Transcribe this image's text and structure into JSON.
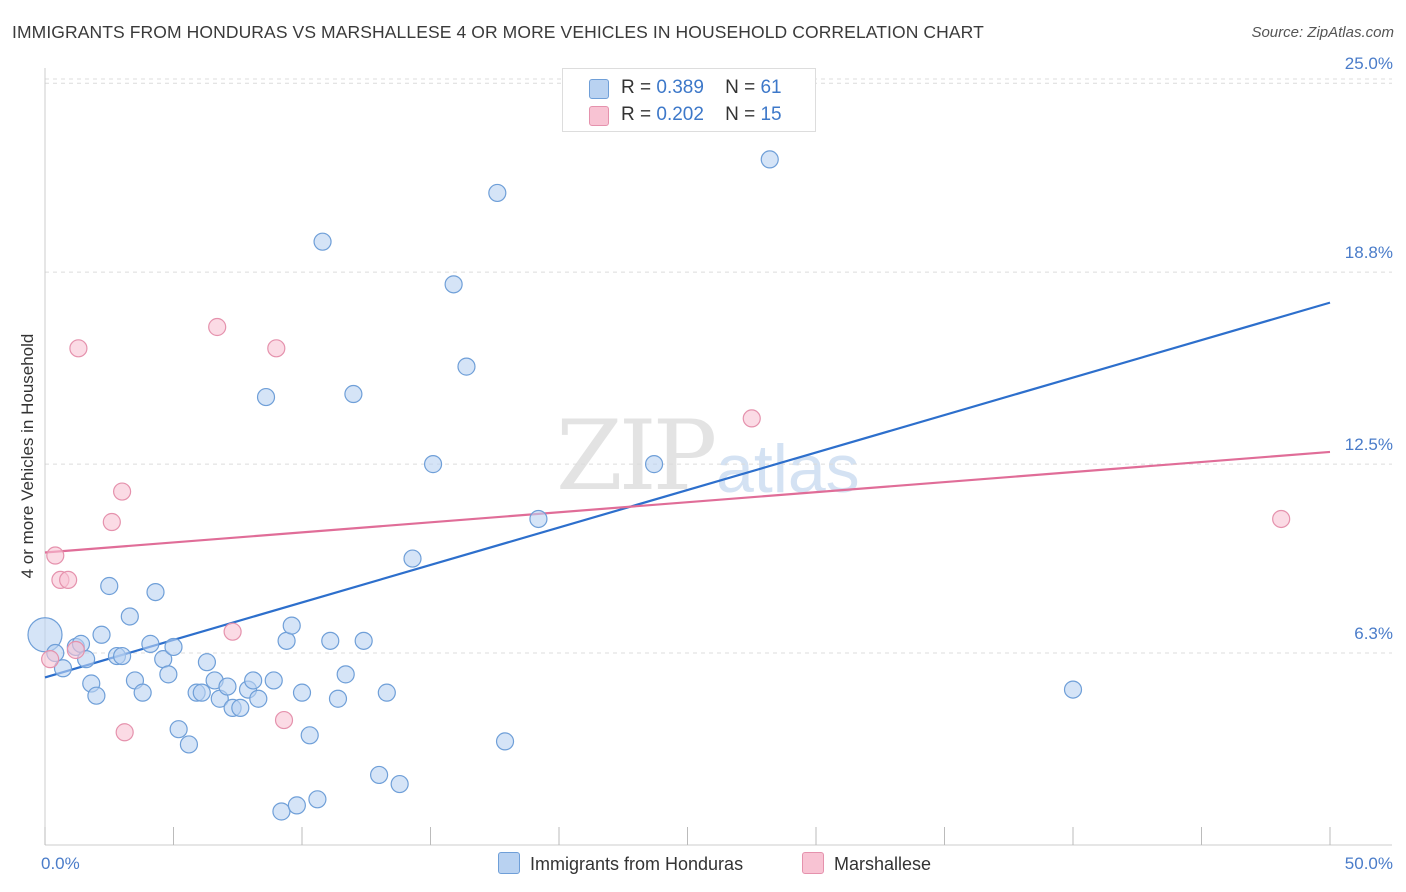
{
  "title": "IMMIGRANTS FROM HONDURAS VS MARSHALLESE 4 OR MORE VEHICLES IN HOUSEHOLD CORRELATION CHART",
  "source": "Source: ZipAtlas.com",
  "watermark": {
    "zip": "ZIP",
    "atlas": "atlas"
  },
  "colors": {
    "blue_fill": "#b9d2f1",
    "blue_stroke": "#6f9fd8",
    "blue_line": "#2d6fcc",
    "pink_fill": "#f8c3d3",
    "pink_stroke": "#e592ad",
    "pink_line": "#e06d98",
    "tick_text": "#4a7cc9",
    "grid": "#dcdcdc"
  },
  "legend": {
    "series1": {
      "r_label": "R =",
      "r_value": "0.389",
      "n_label": "N =",
      "n_value": "61"
    },
    "series2": {
      "r_label": "R =",
      "r_value": "0.202",
      "n_label": "N =",
      "n_value": "15"
    }
  },
  "chart_data": {
    "type": "scatter",
    "title": "IMMIGRANTS FROM HONDURAS VS MARSHALLESE 4 OR MORE VEHICLES IN HOUSEHOLD CORRELATION CHART",
    "xlabel": "",
    "ylabel": "4 or more Vehicles in Household",
    "xlim": [
      0,
      50
    ],
    "ylim": [
      0,
      25.5
    ],
    "x_tick_labels": [
      "0.0%",
      "50.0%"
    ],
    "y_ticks": [
      6.3,
      12.5,
      18.8,
      25.0
    ],
    "y_tick_labels": [
      "6.3%",
      "12.5%",
      "18.8%",
      "25.0%"
    ],
    "legend_position": "top-center",
    "series": [
      {
        "name": "Immigrants from Honduras",
        "r": 0.389,
        "n": 61,
        "trend": {
          "x0": 0,
          "y0": 5.5,
          "x1": 50,
          "y1": 17.8
        },
        "points": [
          [
            0.0,
            6.9
          ],
          [
            0.4,
            6.3
          ],
          [
            0.7,
            5.8
          ],
          [
            1.2,
            6.5
          ],
          [
            1.4,
            6.6
          ],
          [
            1.6,
            6.1
          ],
          [
            1.8,
            5.3
          ],
          [
            2.0,
            4.9
          ],
          [
            2.2,
            6.9
          ],
          [
            2.5,
            8.5
          ],
          [
            2.8,
            6.2
          ],
          [
            3.0,
            6.2
          ],
          [
            3.3,
            7.5
          ],
          [
            3.5,
            5.4
          ],
          [
            3.8,
            5.0
          ],
          [
            4.1,
            6.6
          ],
          [
            4.3,
            8.3
          ],
          [
            4.6,
            6.1
          ],
          [
            4.8,
            5.6
          ],
          [
            5.0,
            6.5
          ],
          [
            5.2,
            3.8
          ],
          [
            5.6,
            3.3
          ],
          [
            5.9,
            5.0
          ],
          [
            6.1,
            5.0
          ],
          [
            6.3,
            6.0
          ],
          [
            6.6,
            5.4
          ],
          [
            6.8,
            4.8
          ],
          [
            7.1,
            5.2
          ],
          [
            7.3,
            4.5
          ],
          [
            7.6,
            4.5
          ],
          [
            7.9,
            5.1
          ],
          [
            8.1,
            5.4
          ],
          [
            8.3,
            4.8
          ],
          [
            8.6,
            14.7
          ],
          [
            8.9,
            5.4
          ],
          [
            9.2,
            1.1
          ],
          [
            9.4,
            6.7
          ],
          [
            9.6,
            7.2
          ],
          [
            9.8,
            1.3
          ],
          [
            10.0,
            5.0
          ],
          [
            10.3,
            3.6
          ],
          [
            10.6,
            1.5
          ],
          [
            10.8,
            19.8
          ],
          [
            11.1,
            6.7
          ],
          [
            11.4,
            4.8
          ],
          [
            11.7,
            5.6
          ],
          [
            12.0,
            14.8
          ],
          [
            12.4,
            6.7
          ],
          [
            13.0,
            2.3
          ],
          [
            13.3,
            5.0
          ],
          [
            13.8,
            2.0
          ],
          [
            14.3,
            9.4
          ],
          [
            15.1,
            12.5
          ],
          [
            15.9,
            18.4
          ],
          [
            16.4,
            15.7
          ],
          [
            17.6,
            21.4
          ],
          [
            17.9,
            3.4
          ],
          [
            19.2,
            10.7
          ],
          [
            23.7,
            12.5
          ],
          [
            28.2,
            22.5
          ],
          [
            40.0,
            5.1
          ]
        ]
      },
      {
        "name": "Marshallese",
        "r": 0.202,
        "n": 15,
        "trend": {
          "x0": 0,
          "y0": 9.6,
          "x1": 50,
          "y1": 12.9
        },
        "points": [
          [
            0.2,
            6.1
          ],
          [
            0.4,
            9.5
          ],
          [
            0.6,
            8.7
          ],
          [
            0.9,
            8.7
          ],
          [
            1.3,
            16.3
          ],
          [
            2.6,
            10.6
          ],
          [
            3.0,
            11.6
          ],
          [
            3.1,
            3.7
          ],
          [
            6.7,
            17.0
          ],
          [
            7.3,
            7.0
          ],
          [
            9.0,
            16.3
          ],
          [
            9.3,
            4.1
          ],
          [
            27.5,
            14.0
          ],
          [
            48.1,
            10.7
          ],
          [
            1.2,
            6.4
          ]
        ]
      }
    ]
  }
}
